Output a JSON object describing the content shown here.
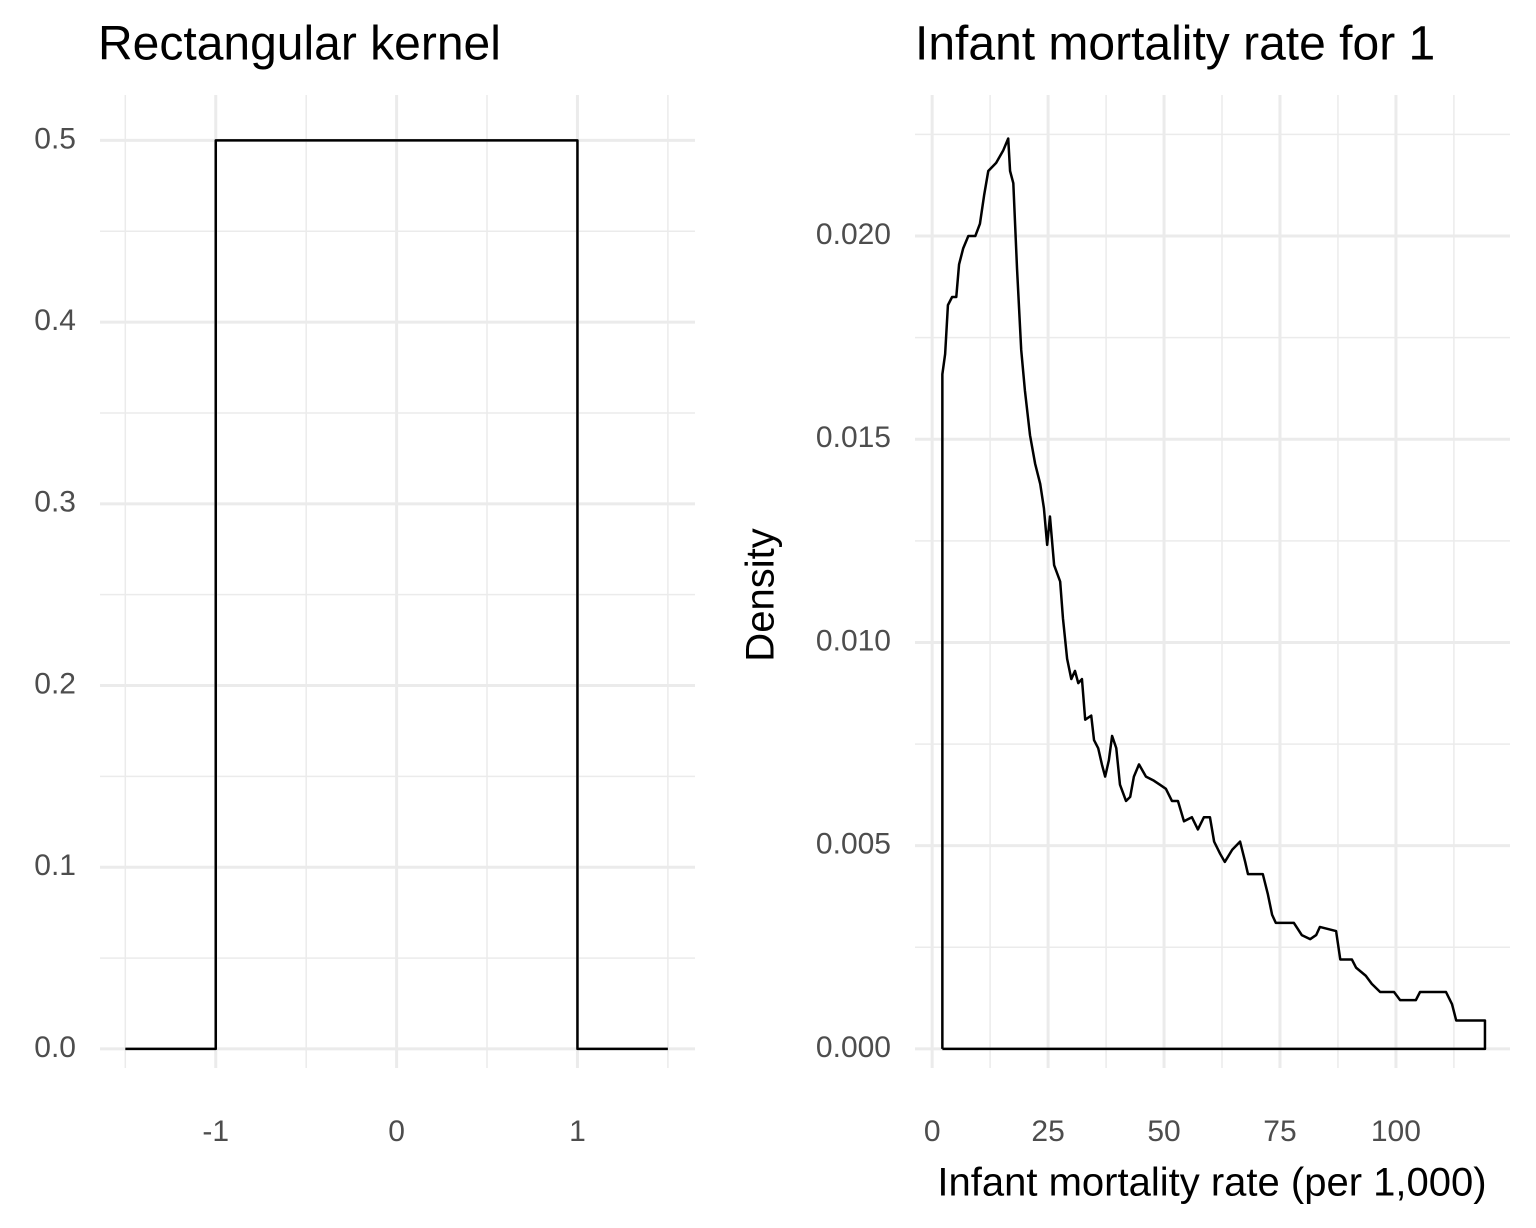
{
  "chart_data": [
    {
      "type": "line",
      "title": "Rectangular kernel",
      "x": [
        -1.5,
        -1,
        -1,
        1,
        1,
        1.5
      ],
      "values": [
        0,
        0,
        0.5,
        0.5,
        0,
        0
      ],
      "color": "#000000",
      "xlim": [
        -1.64,
        1.65
      ],
      "ylim": [
        -0.0105,
        0.525
      ],
      "xticks": [
        -1,
        0,
        1
      ],
      "yticks": [
        {
          "value": 0,
          "label": "0.0"
        },
        0.1,
        0.2,
        0.3,
        0.4,
        0.5
      ],
      "grid": true
    },
    {
      "type": "line",
      "title": "Infant mortality rate for 1",
      "x_label": "Infant mortality rate (per 1,000)",
      "y_label": "Density",
      "x": [
        2.2,
        2.2,
        2.8,
        3.4,
        4.3,
        5.2,
        5.8,
        6.7,
        7.8,
        9.3,
        10.3,
        11.2,
        12.1,
        13.8,
        15.3,
        16.4,
        16.8,
        17.5,
        18.3,
        19.2,
        20.0,
        21.1,
        22.2,
        23.3,
        24.1,
        24.8,
        25.4,
        26.3,
        27.6,
        28.2,
        29.1,
        30.0,
        30.8,
        31.5,
        32.3,
        33.0,
        34.3,
        34.9,
        35.8,
        36.6,
        37.3,
        38.1,
        38.8,
        39.7,
        40.5,
        41.8,
        42.7,
        43.5,
        44.6,
        46.1,
        47.8,
        49.1,
        50.4,
        51.7,
        53.0,
        54.3,
        56.0,
        57.3,
        58.6,
        59.9,
        60.8,
        62.1,
        63.1,
        64.7,
        66.4,
        67.5,
        68.1,
        71.3,
        72.4,
        73.3,
        74.1,
        78.0,
        79.7,
        81.5,
        82.8,
        83.6,
        87.1,
        88.0,
        90.5,
        91.4,
        93.5,
        94.8,
        96.6,
        99.6,
        100.9,
        104.3,
        105.2,
        110.8,
        112.1,
        113.0,
        119.2,
        119.2,
        2.2
      ],
      "values": [
        0,
        0.0166,
        0.0171,
        0.0183,
        0.0185,
        0.0185,
        0.0193,
        0.0197,
        0.02,
        0.02,
        0.0203,
        0.021,
        0.0216,
        0.0218,
        0.0221,
        0.0224,
        0.0216,
        0.0213,
        0.0192,
        0.0172,
        0.0162,
        0.0151,
        0.0144,
        0.0139,
        0.0133,
        0.0124,
        0.0131,
        0.0119,
        0.0115,
        0.0106,
        0.0096,
        0.0091,
        0.0093,
        0.009,
        0.0091,
        0.0081,
        0.0082,
        0.0076,
        0.0074,
        0.007,
        0.0067,
        0.0071,
        0.0077,
        0.0074,
        0.0065,
        0.0061,
        0.0062,
        0.0067,
        0.007,
        0.0067,
        0.0066,
        0.0065,
        0.0064,
        0.0061,
        0.0061,
        0.0056,
        0.0057,
        0.0054,
        0.0057,
        0.0057,
        0.0051,
        0.0048,
        0.0046,
        0.0049,
        0.0051,
        0.0046,
        0.0043,
        0.0043,
        0.0038,
        0.0033,
        0.0031,
        0.0031,
        0.0028,
        0.0027,
        0.0028,
        0.003,
        0.0029,
        0.0022,
        0.0022,
        0.002,
        0.0018,
        0.0016,
        0.0014,
        0.0014,
        0.0012,
        0.0012,
        0.0014,
        0.0014,
        0.0011,
        0.0007,
        0.0007,
        0,
        0
      ],
      "color": "#000000",
      "xlim": [
        -3.7,
        124.6
      ],
      "ylim": [
        -0.00047,
        0.02347
      ],
      "xticks": [
        0,
        25,
        50,
        75,
        100
      ],
      "yticks": [
        {
          "value": 0,
          "label": "0.000"
        },
        0.005,
        {
          "value": 0.01,
          "label": "0.010"
        },
        0.015,
        {
          "value": 0.02,
          "label": "0.020"
        }
      ],
      "grid": true
    }
  ]
}
